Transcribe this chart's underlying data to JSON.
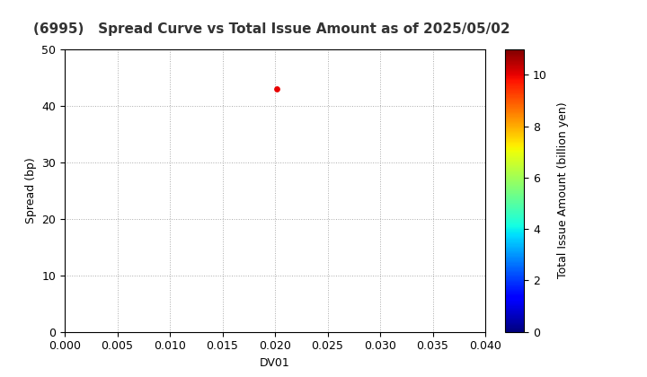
{
  "title": "(6995)   Spread Curve vs Total Issue Amount as of 2025/05/02",
  "xlabel": "DV01",
  "ylabel": "Spread (bp)",
  "colorbar_label": "Total Issue Amount (billion yen)",
  "xlim": [
    0.0,
    0.04
  ],
  "ylim": [
    0,
    50
  ],
  "xticks": [
    0.0,
    0.005,
    0.01,
    0.015,
    0.02,
    0.025,
    0.03,
    0.035,
    0.04
  ],
  "yticks": [
    0,
    10,
    20,
    30,
    40,
    50
  ],
  "colorbar_ticks": [
    0,
    2,
    4,
    6,
    8,
    10
  ],
  "colorbar_min": 0,
  "colorbar_max": 11,
  "scatter_x": [
    0.0202
  ],
  "scatter_y": [
    43.0
  ],
  "scatter_color_value": [
    10.0
  ],
  "scatter_size": 15,
  "grid_color": "#aaaaaa",
  "background_color": "#ffffff",
  "title_fontsize": 11,
  "title_fontweight": "bold",
  "title_color": "#333333",
  "axis_label_fontsize": 9,
  "tick_fontsize": 9,
  "colorbar_label_fontsize": 9
}
